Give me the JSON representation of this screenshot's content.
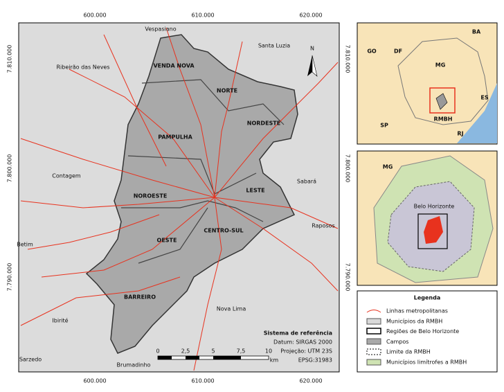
{
  "map": {
    "x_labels_top": [
      "600.000",
      "610.000",
      "620.000"
    ],
    "x_labels_bottom": [
      "600.000",
      "610.000",
      "620.000"
    ],
    "y_labels_left": [
      "7.810.000",
      "7.800.000",
      "7.790.000"
    ],
    "y_labels_right": [
      "7.810.000",
      "7.800.000",
      "7.790.000"
    ],
    "places": [
      "Vespasiano",
      "Santa Luzia",
      "Ribeirão das Neves",
      "VENDA NOVA",
      "NORTE",
      "NORDESTE",
      "PAMPULHA",
      "Contagem",
      "Sabará",
      "NOROESTE",
      "LESTE",
      "Raposos",
      "Betim",
      "OESTE",
      "CENTRO-SUL",
      "BARREIRO",
      "Nova Lima",
      "Ibirité",
      "Sarzedo",
      "Brumadinho"
    ],
    "north": "N",
    "reference": {
      "title": "Sistema de referência",
      "lines": [
        "Datum: SIRGAS 2000",
        "Projeção: UTM 23S",
        "EPSG:31983"
      ]
    },
    "scale": {
      "ticks": [
        "0",
        "2,5",
        "5",
        "7,5",
        "10"
      ],
      "unit": "km"
    }
  },
  "inset_state": {
    "labels": [
      "BA",
      "GO",
      "DF",
      "MG",
      "ES",
      "SP",
      "RMBH",
      "RJ"
    ]
  },
  "inset_metro": {
    "labels": [
      "MG",
      "Belo Horizonte"
    ]
  },
  "legend": {
    "title": "Legenda",
    "items": [
      "Linhas metropolitanas",
      "Municípios da RMBH",
      "Regiões de Belo Horizonte",
      "Campos",
      "Limite da RMBH",
      "Municípios limítrofes a RMBH"
    ]
  }
}
